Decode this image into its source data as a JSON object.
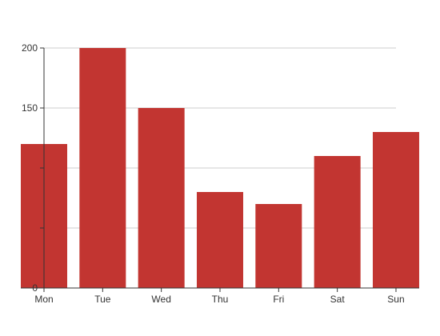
{
  "chart_data": {
    "type": "bar",
    "categories": [
      "Mon",
      "Tue",
      "Wed",
      "Thu",
      "Fri",
      "Sat",
      "Sun"
    ],
    "values": [
      120,
      200,
      150,
      80,
      70,
      110,
      130
    ],
    "title": "",
    "xlabel": "",
    "ylabel": "",
    "ylim": [
      0,
      200
    ],
    "yticks": [
      0,
      50,
      100,
      150,
      200
    ],
    "ytick_labels": [
      "0",
      "",
      "",
      "150",
      "200"
    ],
    "grid": true,
    "legend": "none",
    "colors": {
      "bar": "#c23531",
      "grid": "#cccccc",
      "axis": "#333333",
      "text": "#333333"
    }
  }
}
